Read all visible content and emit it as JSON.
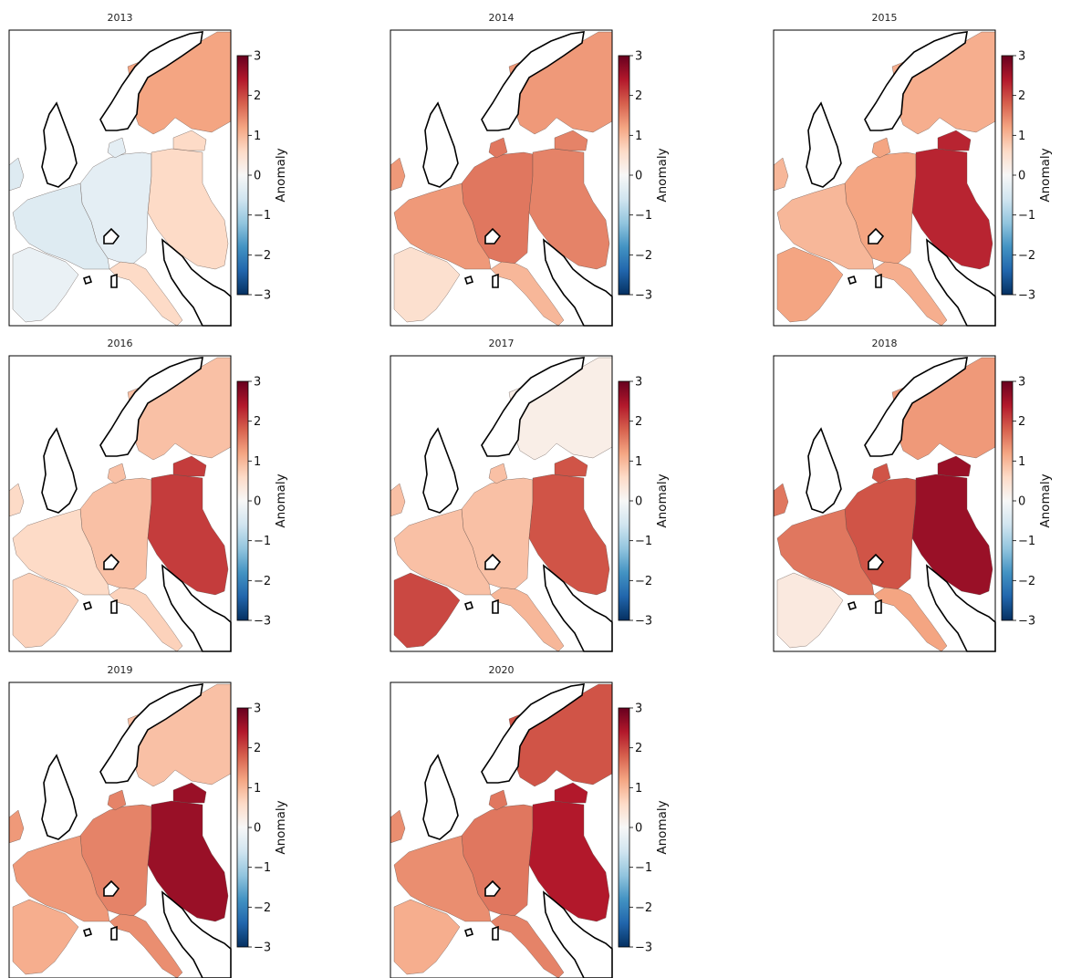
{
  "figure": {
    "colorbar": {
      "label": "Anomaly",
      "min": -3,
      "max": 3,
      "ticks": [
        {
          "value": 3,
          "label": "3"
        },
        {
          "value": 2,
          "label": "2"
        },
        {
          "value": 1,
          "label": "1"
        },
        {
          "value": 0,
          "label": "0"
        },
        {
          "value": -1,
          "label": "−1"
        },
        {
          "value": -2,
          "label": "−2"
        },
        {
          "value": -3,
          "label": "−3"
        }
      ],
      "colormap": "RdBu_r",
      "colormap_stops": [
        "#053061",
        "#2166ac",
        "#4393c3",
        "#92c5de",
        "#d1e5f0",
        "#f7f7f7",
        "#fddbc7",
        "#f4a582",
        "#d6604d",
        "#b2182b",
        "#67001f"
      ]
    },
    "panels": [
      {
        "title": "2013",
        "anomaly": {
          "west": -0.4,
          "central": -0.3,
          "east": 0.6,
          "north": 1.2,
          "iberia": -0.2,
          "south": 0.6
        }
      },
      {
        "title": "2014",
        "anomaly": {
          "west": 1.3,
          "central": 1.6,
          "east": 1.5,
          "north": 1.3,
          "iberia": 0.5,
          "south": 1.0
        }
      },
      {
        "title": "2015",
        "anomaly": {
          "west": 1.0,
          "central": 1.2,
          "east": 2.3,
          "north": 1.1,
          "iberia": 1.2,
          "south": 1.1
        }
      },
      {
        "title": "2016",
        "anomaly": {
          "west": 0.6,
          "central": 0.9,
          "east": 2.1,
          "north": 0.9,
          "iberia": 0.7,
          "south": 0.7
        }
      },
      {
        "title": "2017",
        "anomaly": {
          "west": 0.9,
          "central": 0.9,
          "east": 1.9,
          "north": 0.2,
          "iberia": 2.0,
          "south": 1.0
        }
      },
      {
        "title": "2018",
        "anomaly": {
          "west": 1.6,
          "central": 1.9,
          "east": 2.6,
          "north": 1.3,
          "iberia": 0.3,
          "south": 1.2
        }
      },
      {
        "title": "2019",
        "anomaly": {
          "west": 1.3,
          "central": 1.5,
          "east": 2.6,
          "north": 0.9,
          "iberia": 1.1,
          "south": 1.4
        }
      },
      {
        "title": "2020",
        "anomaly": {
          "west": 1.4,
          "central": 1.6,
          "east": 2.4,
          "north": 1.9,
          "iberia": 1.1,
          "south": 1.5
        }
      }
    ]
  }
}
